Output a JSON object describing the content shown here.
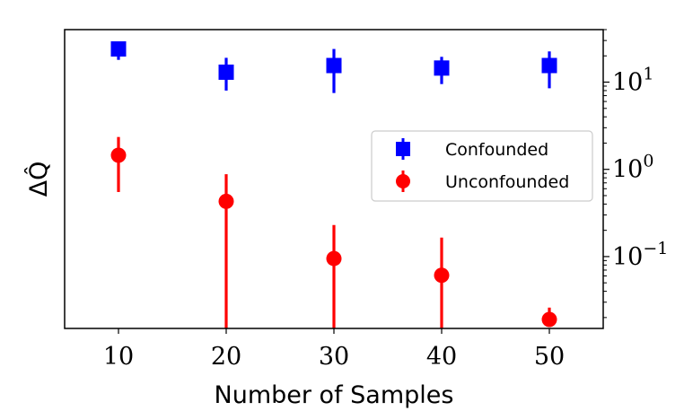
{
  "chart_data": {
    "type": "scatter",
    "xlabel": "Number of Samples",
    "ylabel": "ΔQ̂",
    "x": [
      10,
      20,
      30,
      40,
      50
    ],
    "xlim": [
      5,
      55
    ],
    "y_scale": "log",
    "ylim": [
      0.015,
      40
    ],
    "x_ticks": [
      "10",
      "20",
      "30",
      "40",
      "50"
    ],
    "y_ticks": [
      {
        "value": 10,
        "base": "10",
        "exp": "1"
      },
      {
        "value": 1,
        "base": "10",
        "exp": "0"
      },
      {
        "value": 0.1,
        "base": "10",
        "exp": "−1"
      }
    ],
    "axis_side_y": "right",
    "legend_position": "center-right",
    "series": [
      {
        "name": "Confounded",
        "color": "#0000ff",
        "marker": "square",
        "values": [
          24,
          13,
          15.5,
          14.5,
          15.5
        ],
        "err_low": [
          18,
          8,
          7.5,
          9.5,
          8.5
        ],
        "err_high": [
          29,
          19,
          24,
          19.5,
          22.5
        ]
      },
      {
        "name": "Unconfounded",
        "color": "#ff0000",
        "marker": "circle",
        "values": [
          1.45,
          0.43,
          0.095,
          0.061,
          0.019
        ],
        "err_low": [
          0.55,
          0.015,
          0.015,
          0.015,
          0.016
        ],
        "err_high": [
          2.35,
          0.88,
          0.23,
          0.165,
          0.026
        ]
      }
    ]
  }
}
